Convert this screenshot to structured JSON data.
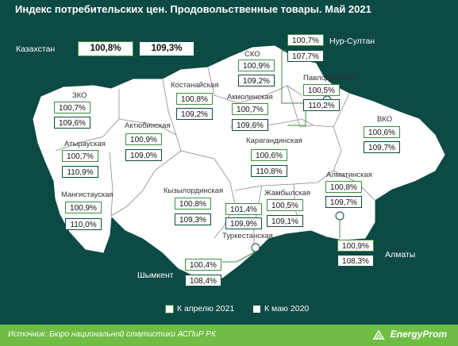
{
  "title": "Индекс потребительских цен. Продовольственные товары. Май 2021",
  "kazakhstan": {
    "name": "Казахстан",
    "apr": "100,8%",
    "may": "109,3%"
  },
  "regions": [
    {
      "id": "nur-sultan",
      "name": "Нур-Султан",
      "apr": "100,7%",
      "may": "107,7%"
    },
    {
      "id": "sko",
      "name": "СКО",
      "apr": "100,9%",
      "may": "109,2%"
    },
    {
      "id": "pavlodar",
      "name": "Павлодарская",
      "apr": "100,5%",
      "may": "110,2%"
    },
    {
      "id": "kostanay",
      "name": "Костанайская",
      "apr": "100,8%",
      "may": "109,2%"
    },
    {
      "id": "akmola",
      "name": "Акмолинская",
      "apr": "100,7%",
      "may": "109,6%"
    },
    {
      "id": "zko",
      "name": "ЗКО",
      "apr": "100,7%",
      "may": "109,6%"
    },
    {
      "id": "vko",
      "name": "ВКО",
      "apr": "100,6%",
      "may": "109,7%"
    },
    {
      "id": "aktobe",
      "name": "Актюбинская",
      "apr": "100,9%",
      "may": "109,0%"
    },
    {
      "id": "karaganda",
      "name": "Карагандинская",
      "apr": "100,6%",
      "may": "110,8%"
    },
    {
      "id": "atyrau",
      "name": "Атырауская",
      "apr": "100,7%",
      "may": "110,9%"
    },
    {
      "id": "almaty-region",
      "name": "Алматинская",
      "apr": "100,8%",
      "may": "109,7%"
    },
    {
      "id": "mangistau",
      "name": "Мангистауская",
      "apr": "100,9%",
      "may": "110,0%"
    },
    {
      "id": "kyzylorda",
      "name": "Кызылординская",
      "apr": "100,8%",
      "may": "109,3%"
    },
    {
      "id": "zhambyl",
      "name": "Жамбылская",
      "apr": "100,5%",
      "may": "109,1%"
    },
    {
      "id": "turkestan",
      "name": "Туркестанская",
      "apr": "101,4%",
      "may": "109,9%"
    },
    {
      "id": "almaty-city",
      "name": "Алматы",
      "apr": "100,9%",
      "may": "108,3%"
    },
    {
      "id": "shymkent",
      "name": "Шымкент",
      "apr": "100,4%",
      "may": "108,4%"
    }
  ],
  "legend": {
    "apr": "К апрелю 2021",
    "may": "К маю 2020"
  },
  "footer": {
    "source": "Источник: Бюро национальной  статистики АСПиР РК",
    "brand": "EnergyProm"
  },
  "colors": {
    "background": "#0c4a44",
    "accent_green": "#6fbe44",
    "map_fill": "#ffffff",
    "border_apr": "#3f8f3a",
    "border_may": "#0c4a44"
  }
}
